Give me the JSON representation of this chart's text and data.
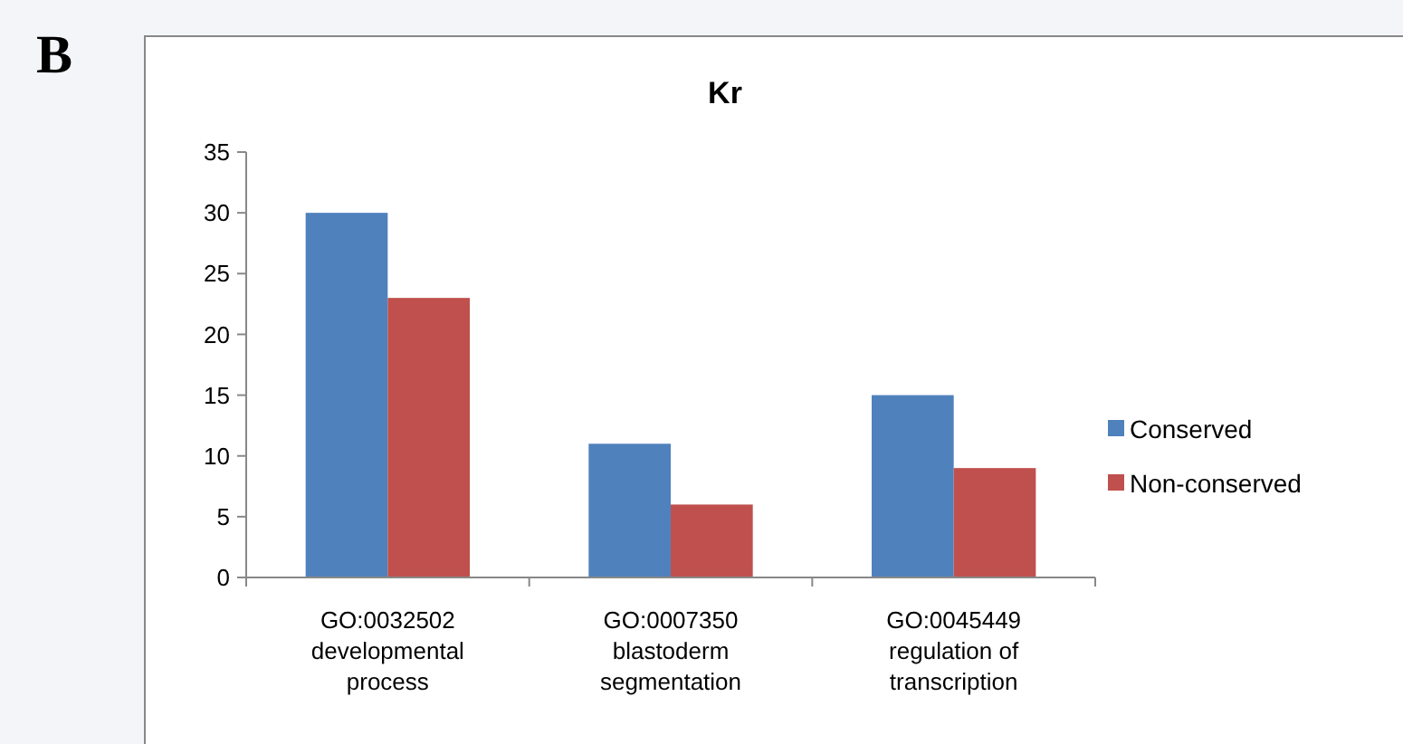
{
  "chart_data": {
    "type": "bar",
    "title": "Kr",
    "annotations": [
      "B"
    ],
    "categories": [
      "GO:0032502\ndevelopmental\nprocess",
      "GO:0007350\nblastoderm\nsegmentation",
      "GO:0045449\nregulation of\ntranscription"
    ],
    "series": [
      {
        "name": "Conserved",
        "color": "#4f81bd",
        "values": [
          30,
          11,
          15
        ]
      },
      {
        "name": "Non-conserved",
        "color": "#c0504d",
        "values": [
          23,
          6,
          9
        ]
      }
    ],
    "ylim": [
      0,
      35
    ],
    "yticks": [
      0,
      5,
      10,
      15,
      20,
      25,
      30,
      35
    ],
    "grid": false,
    "legend": "right"
  }
}
